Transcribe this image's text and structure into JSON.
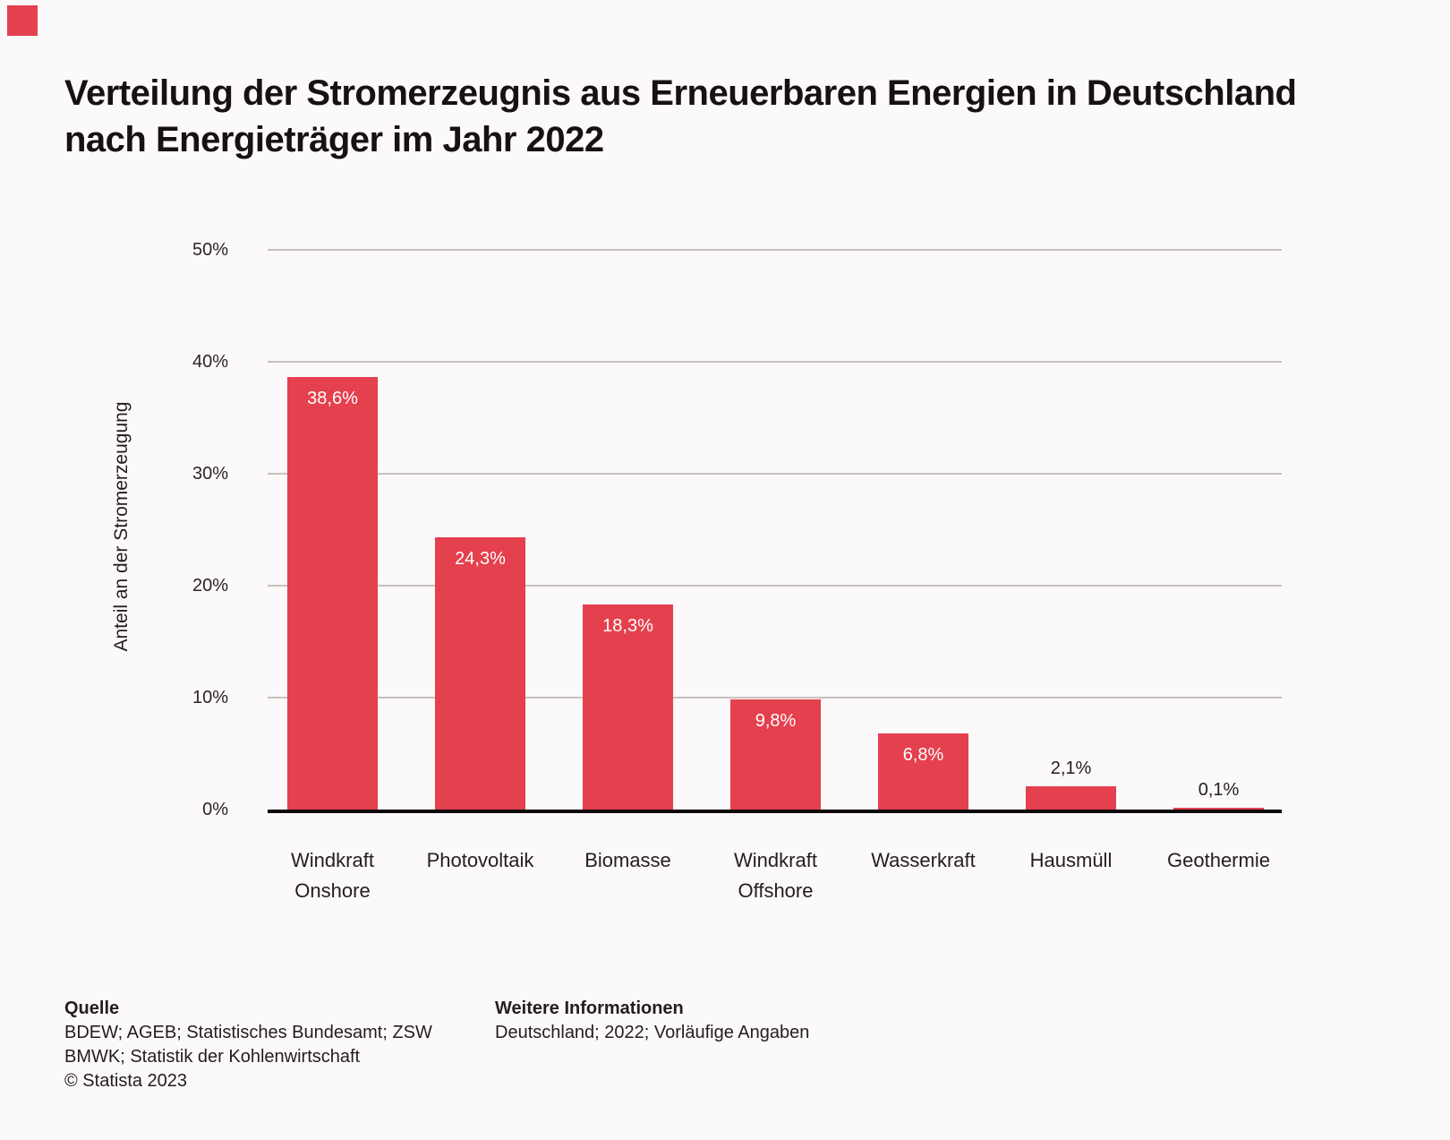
{
  "page": {
    "background": "#FBF9F9"
  },
  "corner_marker": {
    "color": "#E4404E"
  },
  "title": {
    "line1": "Verteilung der Stromerzeugnis aus Erneuerbaren Energien in Deutschland",
    "line2": "nach Energieträger im Jahr 2022"
  },
  "chart_data": {
    "type": "bar",
    "categories": [
      "Windkraft Onshore",
      "Photovoltaik",
      "Biomasse",
      "Windkraft Offshore",
      "Wasserkraft",
      "Hausmüll",
      "Geothermie"
    ],
    "category_lines": [
      [
        "Windkraft",
        "Onshore"
      ],
      [
        "Photovoltaik"
      ],
      [
        "Biomasse"
      ],
      [
        "Windkraft",
        "Offshore"
      ],
      [
        "Wasserkraft"
      ],
      [
        "Hausmüll"
      ],
      [
        "Geothermie"
      ]
    ],
    "values": [
      38.6,
      24.3,
      18.3,
      9.8,
      6.8,
      2.1,
      0.1
    ],
    "value_labels": [
      "38,6%",
      "24,3%",
      "18,3%",
      "9,8%",
      "6,8%",
      "2,1%",
      "0,1%"
    ],
    "title": "",
    "xlabel": "",
    "ylabel": "Anteil an der Stromerzeugung",
    "ylim": [
      0,
      50
    ],
    "ytick_step": 10,
    "ytick_labels": [
      "0%",
      "10%",
      "20%",
      "30%",
      "40%",
      "50%"
    ],
    "grid": true,
    "legend": false,
    "bar_color": "#E4404E",
    "grid_color": "#C9C0BE",
    "axis_color": "#0F0A0B"
  },
  "footer": {
    "source_header": "Quelle",
    "source_line1": "BDEW; AGEB; Statistisches Bundesamt; ZSW",
    "source_line2": "BMWK; Statistik der Kohlenwirtschaft",
    "copyright": "© Statista 2023",
    "info_header": "Weitere Informationen",
    "info_line1": "Deutschland; 2022; Vorläufige Angaben"
  }
}
